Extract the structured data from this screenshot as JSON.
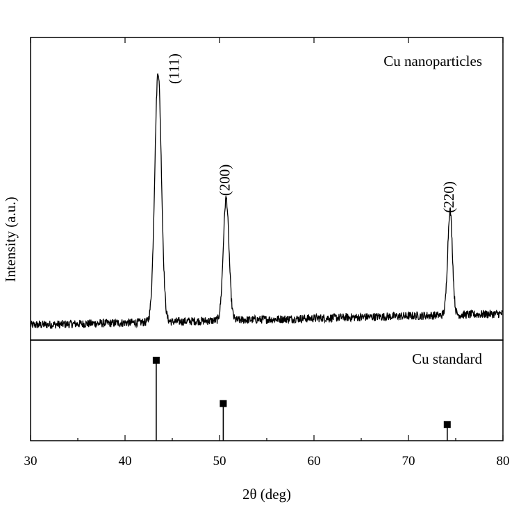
{
  "chart_data": {
    "type": "line",
    "xlabel": "2θ (deg)",
    "ylabel": "Intensity (a.u.)",
    "xlim": [
      30,
      80
    ],
    "x_ticks": [
      "30",
      "40",
      "50",
      "60",
      "70",
      "80"
    ],
    "panels": [
      {
        "name": "top",
        "label": "Cu nanoparticles",
        "type": "line",
        "ylim": [
          0,
          100
        ],
        "baseline": {
          "x": [
            30,
            80
          ],
          "y": [
            1.5,
            5.8
          ]
        },
        "peaks": [
          {
            "x": 43.5,
            "height": 95.5,
            "width": 0.35,
            "label": "(111)"
          },
          {
            "x": 50.7,
            "height": 46.5,
            "width": 0.3,
            "label": "(200)"
          },
          {
            "x": 74.4,
            "height": 40,
            "width": 0.25,
            "label": "(220)"
          }
        ]
      },
      {
        "name": "bottom",
        "label": "Cu standard",
        "type": "stem",
        "ylim": [
          0,
          100
        ],
        "x": [
          43.3,
          50.4,
          74.1
        ],
        "y": [
          80,
          37,
          16
        ]
      }
    ]
  }
}
